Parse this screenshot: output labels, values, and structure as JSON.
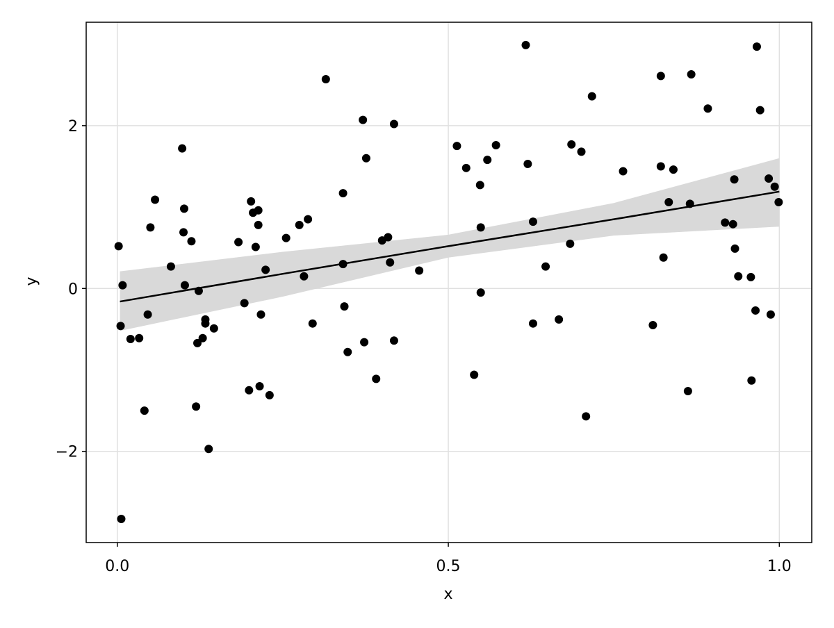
{
  "chart_data": {
    "type": "scatter",
    "xlabel": "x",
    "ylabel": "y",
    "x": [
      0.002,
      0.008,
      0.005,
      0.006,
      0.02,
      0.033,
      0.041,
      0.046,
      0.05,
      0.057,
      0.081,
      0.098,
      0.1,
      0.101,
      0.102,
      0.112,
      0.119,
      0.121,
      0.123,
      0.129,
      0.133,
      0.133,
      0.138,
      0.146,
      0.183,
      0.192,
      0.199,
      0.202,
      0.205,
      0.209,
      0.213,
      0.213,
      0.215,
      0.217,
      0.224,
      0.23,
      0.255,
      0.275,
      0.282,
      0.288,
      0.295,
      0.315,
      0.341,
      0.341,
      0.343,
      0.348,
      0.371,
      0.373,
      0.376,
      0.391,
      0.4,
      0.409,
      0.412,
      0.418,
      0.418,
      0.456,
      0.513,
      0.527,
      0.539,
      0.548,
      0.549,
      0.549,
      0.559,
      0.572,
      0.617,
      0.62,
      0.628,
      0.628,
      0.647,
      0.667,
      0.684,
      0.686,
      0.701,
      0.708,
      0.717,
      0.764,
      0.809,
      0.821,
      0.821,
      0.825,
      0.833,
      0.84,
      0.862,
      0.865,
      0.867,
      0.892,
      0.918,
      0.93,
      0.932,
      0.933,
      0.938,
      0.957,
      0.958,
      0.964,
      0.966,
      0.971,
      0.984,
      0.987,
      0.993,
      0.999
    ],
    "values": [
      0.52,
      0.04,
      -0.46,
      -2.83,
      -0.62,
      -0.61,
      -1.5,
      -0.32,
      0.75,
      1.09,
      0.27,
      1.72,
      0.69,
      0.98,
      0.04,
      0.58,
      -1.45,
      -0.67,
      -0.03,
      -0.61,
      -0.38,
      -0.43,
      -1.97,
      -0.49,
      0.57,
      -0.18,
      -1.25,
      1.07,
      0.93,
      0.51,
      0.96,
      0.78,
      -1.2,
      -0.32,
      0.23,
      -1.31,
      0.62,
      0.78,
      0.15,
      0.85,
      -0.43,
      2.57,
      1.17,
      0.3,
      -0.22,
      -0.78,
      2.07,
      -0.66,
      1.6,
      -1.11,
      0.59,
      0.63,
      0.32,
      2.02,
      -0.64,
      0.22,
      1.75,
      1.48,
      -1.06,
      1.27,
      0.75,
      -0.05,
      1.58,
      1.76,
      2.99,
      1.53,
      0.82,
      -0.43,
      0.27,
      -0.38,
      0.55,
      1.77,
      1.68,
      -1.57,
      2.36,
      1.44,
      -0.45,
      2.61,
      1.5,
      0.38,
      1.06,
      1.46,
      -1.26,
      1.04,
      2.63,
      2.21,
      0.81,
      0.79,
      1.34,
      0.49,
      0.15,
      0.14,
      -1.13,
      -0.27,
      2.97,
      2.19,
      1.35,
      -0.32,
      1.25,
      1.06
    ],
    "color": "#000000",
    "fit": {
      "x": [
        0.004,
        0.25,
        0.5,
        0.75,
        1.0
      ],
      "values": [
        -0.16,
        0.18,
        0.52,
        0.85,
        1.19
      ],
      "lower": [
        -0.52,
        -0.1,
        0.38,
        0.65,
        0.76
      ],
      "upper": [
        0.21,
        0.45,
        0.66,
        1.05,
        1.6
      ],
      "color": "#000000",
      "band_color": "#d9d9d9"
    },
    "xlim": [
      -0.047,
      1.049
    ],
    "ylim": [
      -3.12,
      3.27
    ],
    "xticks": [
      {
        "value": 0,
        "label": "0.0"
      },
      {
        "value": 0.5,
        "label": "0.5"
      },
      {
        "value": 1,
        "label": "1.0"
      }
    ],
    "yticks": [
      {
        "value": -2,
        "label": "−2"
      },
      0,
      2
    ],
    "grid": true
  }
}
